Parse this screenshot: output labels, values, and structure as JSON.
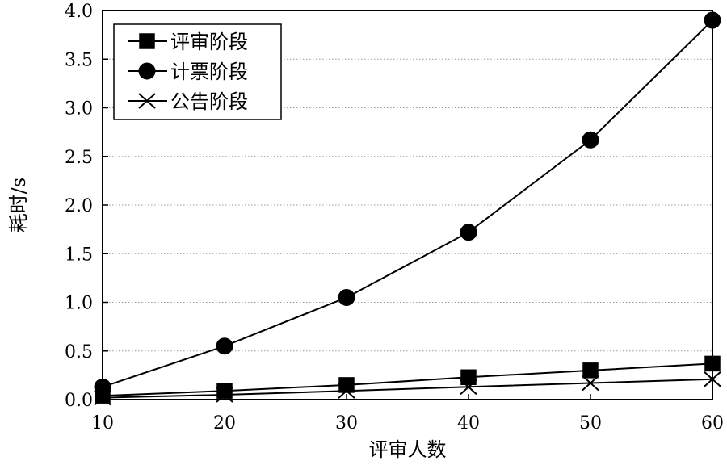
{
  "chart_data": {
    "type": "line",
    "xlabel": "评审人数",
    "ylabel": "耗时/s",
    "x": [
      10,
      20,
      30,
      40,
      50,
      60
    ],
    "xlim": [
      10,
      60
    ],
    "ylim": [
      0,
      4.0
    ],
    "xticks": [
      "10",
      "20",
      "30",
      "40",
      "50",
      "60"
    ],
    "yticks": [
      "0.0",
      "0.5",
      "1.0",
      "1.5",
      "2.0",
      "2.5",
      "3.0",
      "3.5",
      "4.0"
    ],
    "grid": "horizontal dotted",
    "legend_position": "top-left",
    "series": [
      {
        "name": "评审阶段",
        "marker": "square",
        "values": [
          0.04,
          0.09,
          0.15,
          0.23,
          0.3,
          0.37
        ]
      },
      {
        "name": "计票阶段",
        "marker": "circle",
        "values": [
          0.13,
          0.55,
          1.05,
          1.72,
          2.67,
          3.9
        ]
      },
      {
        "name": "公告阶段",
        "marker": "x",
        "values": [
          0.02,
          0.05,
          0.09,
          0.13,
          0.17,
          0.21
        ]
      }
    ],
    "colors": {
      "line": "#000000",
      "grid": "#999999",
      "background": "#ffffff"
    }
  }
}
